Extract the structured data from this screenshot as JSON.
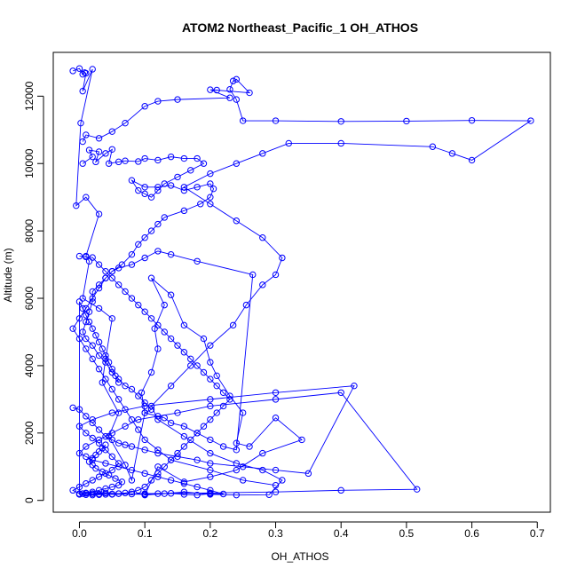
{
  "chart_data": {
    "type": "line",
    "title": "ATOM2 Northeast_Pacific_1 OH_ATHOS",
    "xlabel": "OH_ATHOS",
    "ylabel": "Altitude (m)",
    "xlim": [
      -0.04,
      0.72
    ],
    "ylim": [
      -350,
      13300
    ],
    "x_ticks": [
      0,
      0.1,
      0.2,
      0.3,
      0.4,
      0.5,
      0.6,
      0.7
    ],
    "x_tick_labels": [
      "0.0",
      "0.1",
      "0.2",
      "0.3",
      "0.4",
      "0.5",
      "0.6",
      "0.7"
    ],
    "y_ticks": [
      0,
      2000,
      4000,
      6000,
      8000,
      10000,
      12000
    ],
    "y_tick_labels": [
      "0",
      "2000",
      "4000",
      "6000",
      "8000",
      "10000",
      "12000"
    ],
    "grid": false,
    "legend": "none",
    "marker": "open-circle",
    "color": "#0000ff",
    "series": [
      {
        "x": [
          -0.01,
          0.0,
          0.005,
          0.008,
          0.01,
          0.005,
          0.02,
          0.002,
          -0.005,
          0.01,
          0.03,
          0.01,
          0.015,
          0.005,
          0.03,
          0.05,
          0.04,
          0.035,
          0.06,
          0.045,
          0.07,
          0.08,
          0.1,
          0.095,
          0.11,
          0.12,
          0.115,
          0.13,
          0.11,
          0.14,
          0.16,
          0.19,
          0.2,
          0.21,
          0.23,
          0.25,
          0.24,
          0.26,
          0.3,
          0.34,
          0.28,
          0.24,
          0.2,
          0.16,
          0.12,
          0.1,
          0.13,
          0.16,
          0.2,
          0.24,
          0.29,
          0.31,
          0.28,
          0.24,
          0.2,
          0.16,
          0.12,
          0.11,
          0.14,
          0.17,
          0.2,
          0.235,
          0.255,
          0.28,
          0.3,
          0.31,
          0.28,
          0.24,
          0.2,
          0.16,
          0.2,
          0.24,
          0.28,
          0.32,
          0.4,
          0.54,
          0.57,
          0.6,
          0.69,
          0.6,
          0.5,
          0.4,
          0.3,
          0.25,
          0.24,
          0.23,
          0.235,
          0.24,
          0.26,
          0.21,
          0.2,
          0.23,
          0.15,
          0.12,
          0.1,
          0.07,
          0.05,
          0.03,
          0.01,
          0.005
        ],
        "y": [
          12750,
          12820,
          12650,
          12700,
          12680,
          12150,
          12800,
          11200,
          8750,
          9000,
          8500,
          7250,
          7100,
          6000,
          5700,
          5400,
          4200,
          3500,
          2600,
          1900,
          1050,
          600,
          2600,
          3200,
          3800,
          4500,
          5100,
          5800,
          6600,
          6100,
          5200,
          4800,
          4100,
          3700,
          3100,
          2600,
          1700,
          1600,
          2450,
          1800,
          1400,
          900,
          700,
          550,
          1000,
          160,
          200,
          250,
          180,
          160,
          170,
          600,
          900,
          1100,
          1400,
          1900,
          2400,
          2800,
          3400,
          4000,
          4600,
          5200,
          5800,
          6400,
          6700,
          7200,
          7800,
          8300,
          8800,
          9300,
          9700,
          10000,
          10300,
          10600,
          10600,
          10500,
          10300,
          10100,
          11270,
          11280,
          11260,
          11250,
          11270,
          11270,
          11900,
          12200,
          12450,
          12500,
          12100,
          12180,
          12190,
          11950,
          11900,
          11850,
          11700,
          11200,
          10950,
          10750,
          10850,
          10650
        ]
      },
      {
        "x": [
          0.005,
          0.02,
          0.015,
          0.03,
          0.025,
          0.04,
          0.05,
          0.045,
          0.06,
          0.07,
          0.09,
          0.1,
          0.12,
          0.14,
          0.16,
          0.18,
          0.19,
          0.17,
          0.15,
          0.13,
          0.12,
          0.11,
          0.1,
          0.09,
          0.08,
          0.1,
          0.12,
          0.14,
          0.16,
          0.18,
          0.2,
          0.205,
          0.2,
          0.185,
          0.16,
          0.13,
          0.12,
          0.11,
          0.1,
          0.09,
          0.08,
          0.065,
          0.05,
          0.04,
          0.03,
          0.02,
          0.02,
          0.015,
          0.01,
          0.005,
          0.01,
          0.02,
          0.03,
          0.04,
          0.05,
          0.06,
          0.07,
          0.08,
          0.09,
          0.1,
          0.11,
          0.1,
          0.12,
          0.13,
          0.14,
          0.16,
          0.18,
          0.2,
          0.22,
          0.24,
          0.265,
          0.18,
          0.14,
          0.12,
          0.1,
          0.08,
          0.06,
          0.05,
          0.04,
          0.03,
          0.02,
          0.01,
          0.0,
          -0.01,
          0.0,
          0.01,
          0.02,
          0.03,
          0.04,
          0.05,
          0.06,
          0.07,
          0.08,
          0.09,
          0.1,
          0.12,
          0.14,
          0.2,
          0.25,
          0.3
        ],
        "y": [
          10000,
          10200,
          10400,
          10350,
          10050,
          10300,
          10420,
          10000,
          10050,
          10080,
          10060,
          10150,
          10100,
          10200,
          10150,
          10150,
          10000,
          9800,
          9600,
          9400,
          9200,
          9000,
          9100,
          9200,
          9500,
          9300,
          9300,
          9350,
          9200,
          9300,
          9400,
          9250,
          9000,
          8800,
          8600,
          8400,
          8200,
          8000,
          7800,
          7600,
          7300,
          7000,
          6800,
          6600,
          6400,
          6200,
          5900,
          5600,
          5300,
          5000,
          4800,
          4600,
          4300,
          4100,
          3800,
          3600,
          3400,
          3300,
          3100,
          2900,
          2700,
          2600,
          2500,
          2450,
          2300,
          2200,
          2000,
          1800,
          1600,
          1500,
          6700,
          7100,
          7300,
          7400,
          7200,
          7000,
          6900,
          6800,
          6600,
          6300,
          6000,
          5700,
          5400,
          5100,
          4800,
          4500,
          4200,
          3900,
          3600,
          3300,
          3000,
          2700,
          2400,
          2100,
          1800,
          1500,
          1200,
          900,
          600,
          450
        ]
      },
      {
        "x": [
          -0.01,
          0.0,
          0.01,
          0.02,
          0.03,
          0.04,
          0.05,
          0.06,
          0.07,
          0.08,
          0.1,
          0.12,
          0.15,
          0.18,
          0.2,
          0.25,
          0.3,
          0.35,
          0.42,
          0.3,
          0.2,
          0.1,
          0.05,
          0.02,
          0.0,
          0.01,
          0.02,
          0.03,
          0.04,
          0.05,
          0.06,
          0.05,
          0.04,
          0.03,
          0.02,
          0.01,
          0.0,
          -0.01,
          0.0,
          0.02,
          0.04,
          0.06,
          0.08,
          0.1,
          0.12,
          0.14,
          0.16,
          0.18,
          0.2,
          0.22,
          0.2,
          0.18,
          0.16,
          0.14,
          0.12,
          0.1,
          0.08,
          0.06,
          0.04,
          0.02,
          0.01,
          0.0,
          0.01,
          0.03,
          0.05,
          0.07,
          0.09,
          0.15,
          0.2,
          0.3,
          0.4,
          0.516,
          0.4,
          0.3,
          0.2,
          0.1,
          0.05,
          0.03,
          0.02,
          0.01,
          0.005,
          0.0,
          0.01,
          0.02,
          0.03,
          0.04,
          0.05,
          0.06,
          0.065,
          0.055,
          0.045,
          0.035,
          0.025,
          0.02,
          0.015,
          0.02,
          0.025,
          0.03,
          0.035,
          0.04
        ],
        "y": [
          2750,
          2700,
          2500,
          2300,
          2100,
          1900,
          1800,
          1700,
          1650,
          1600,
          1500,
          1400,
          1300,
          1200,
          1100,
          1000,
          900,
          800,
          3400,
          3200,
          3000,
          2800,
          2600,
          2400,
          2200,
          2000,
          1850,
          1700,
          1500,
          1300,
          1100,
          900,
          800,
          700,
          600,
          500,
          400,
          300,
          200,
          200,
          220,
          200,
          190,
          180,
          200,
          210,
          180,
          160,
          200,
          190,
          300,
          400,
          500,
          600,
          700,
          800,
          900,
          1000,
          1100,
          1200,
          1300,
          1400,
          1600,
          1800,
          2000,
          2200,
          2400,
          2600,
          2800,
          3000,
          3200,
          330,
          300,
          250,
          220,
          200,
          180,
          190,
          200,
          210,
          200,
          190,
          220,
          250,
          300,
          350,
          400,
          450,
          550,
          650,
          750,
          850,
          950,
          1050,
          1150,
          1250,
          1350,
          1450,
          1550,
          1650
        ]
      },
      {
        "x": [
          0.0,
          0.01,
          0.02,
          0.03,
          0.04,
          0.05,
          0.06,
          0.07,
          0.08,
          0.09,
          0.1,
          0.11,
          0.12,
          0.13,
          0.14,
          0.15,
          0.16,
          0.17,
          0.18,
          0.19,
          0.2,
          0.21,
          0.22,
          0.23,
          0.22,
          0.21,
          0.2,
          0.19,
          0.18,
          0.17,
          0.16,
          0.15,
          0.14,
          0.13,
          0.12,
          0.11,
          0.1,
          0.09,
          0.08,
          0.07,
          0.06,
          0.05,
          0.04,
          0.03,
          0.02,
          0.01,
          0.0,
          0.0,
          0.005,
          0.01,
          0.015,
          0.02,
          0.025,
          0.03,
          0.035,
          0.04,
          0.045,
          0.05,
          0.055,
          0.06
        ],
        "y": [
          7250,
          7230,
          7210,
          7000,
          6800,
          6600,
          6400,
          6200,
          6000,
          5800,
          5600,
          5400,
          5200,
          5000,
          4800,
          4600,
          4400,
          4200,
          4000,
          3800,
          3600,
          3400,
          3200,
          3000,
          2800,
          2600,
          2400,
          2200,
          2000,
          1800,
          1600,
          1400,
          1200,
          1000,
          800,
          600,
          400,
          300,
          250,
          220,
          200,
          190,
          180,
          170,
          160,
          170,
          180,
          5900,
          5700,
          5500,
          5300,
          5100,
          4900,
          4700,
          4500,
          4300,
          4100,
          3900,
          3700,
          3500
        ]
      }
    ]
  }
}
